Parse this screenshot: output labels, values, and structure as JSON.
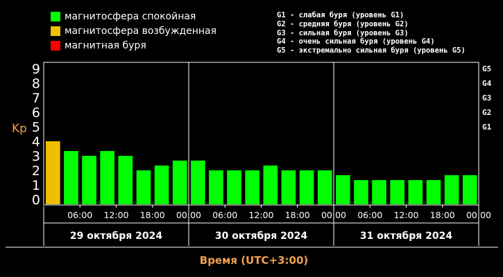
{
  "legend": {
    "items": [
      {
        "label": "магнитосфера спокойная",
        "color": "#00ff00"
      },
      {
        "label": "магнитосфера возбужденная",
        "color": "#f0c000"
      },
      {
        "label": "магнитная буря",
        "color": "#ff0000"
      }
    ],
    "storm_levels": [
      "G1 - слабая буря (уровень G1)",
      "G2 - средняя буря (уровень G2)",
      "G3 - сильная буря (уровень G3)",
      "G4 - очень сильная буря (уровень G4)",
      "G5 - экстремально сильная буря (уровень G5)"
    ]
  },
  "chart_data": {
    "type": "bar",
    "ylabel": "Kp",
    "xlabel": "Время (UTC+3:00)",
    "ylim": [
      0,
      9
    ],
    "y_ticks": [
      0,
      1,
      2,
      3,
      4,
      5,
      6,
      7,
      8,
      9
    ],
    "right_axis_labels": [
      {
        "label": "G1",
        "y": 5
      },
      {
        "label": "G2",
        "y": 6
      },
      {
        "label": "G3",
        "y": 7
      },
      {
        "label": "G4",
        "y": 8
      },
      {
        "label": "G5",
        "y": 9
      }
    ],
    "x_tick_labels": [
      "06:00",
      "12:00",
      "18:00",
      "00:00",
      "06:00",
      "12:00",
      "18:00",
      "00:00",
      "06:00",
      "12:00",
      "18:00",
      "00:00"
    ],
    "days": [
      "29 октября 2024",
      "30 октября 2024",
      "31 октября 2024"
    ],
    "bar_colors": {
      "quiet": "#00ff00",
      "active": "#f0c000",
      "storm": "#ff0000"
    },
    "values": [
      4,
      3.33,
      3,
      3.33,
      3,
      2,
      2.33,
      2.67,
      2.67,
      2,
      2,
      2,
      2.33,
      2,
      2,
      2,
      1.67,
      1.33,
      1.33,
      1.33,
      1.33,
      1.33,
      1.67,
      1.67
    ]
  }
}
